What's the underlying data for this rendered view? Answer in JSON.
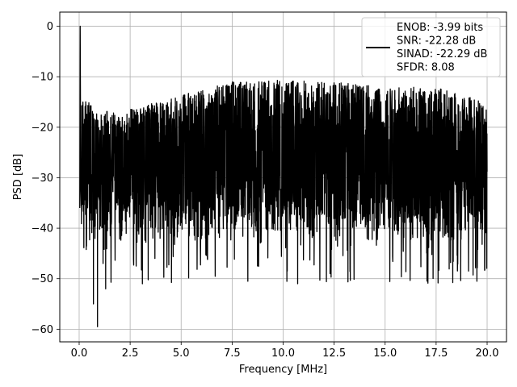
{
  "chart_data": {
    "type": "line",
    "title": "",
    "xlabel": "Frequency [MHz]",
    "ylabel": "PSD [dB]",
    "xlim": [
      -0.95,
      20.95
    ],
    "ylim": [
      -62.5,
      2.8
    ],
    "xticks": [
      0.0,
      2.5,
      5.0,
      7.5,
      10.0,
      12.5,
      15.0,
      17.5,
      20.0
    ],
    "xtick_labels": [
      "0.0",
      "2.5",
      "5.0",
      "7.5",
      "10.0",
      "12.5",
      "15.0",
      "17.5",
      "20.0"
    ],
    "yticks": [
      0,
      -10,
      -20,
      -30,
      -40,
      -50,
      -60
    ],
    "ytick_labels": [
      "0",
      "−10",
      "−20",
      "−30",
      "−40",
      "−50",
      "−60"
    ],
    "grid": true,
    "legend_position": "top-right",
    "legend_text": [
      "ENOB: -3.99 bits",
      "SNR: -22.28 dB",
      "SINAD: -22.29 dB",
      "SFDR: 8.08"
    ],
    "series": [
      {
        "color": "#000000",
        "description": "dense noise-like PSD trace with sharp peak at 0 MHz",
        "peak": {
          "x": 0.05,
          "y": 0
        },
        "envelope_upper": [
          [
            0.2,
            -14
          ],
          [
            1.0,
            -17
          ],
          [
            3.0,
            -16
          ],
          [
            5.0,
            -13.5
          ],
          [
            7.5,
            -11
          ],
          [
            10.0,
            -10.5
          ],
          [
            12.5,
            -11
          ],
          [
            15.0,
            -12
          ],
          [
            17.5,
            -12
          ],
          [
            20.0,
            -15
          ]
        ],
        "band_center": -27,
        "envelope_lower_notable": [
          [
            0.7,
            -55
          ],
          [
            0.9,
            -59.5
          ],
          [
            1.3,
            -52
          ],
          [
            3.1,
            -51
          ],
          [
            10.2,
            -48.5
          ],
          [
            12.3,
            -49
          ],
          [
            19.5,
            -50.5
          ]
        ]
      }
    ]
  }
}
